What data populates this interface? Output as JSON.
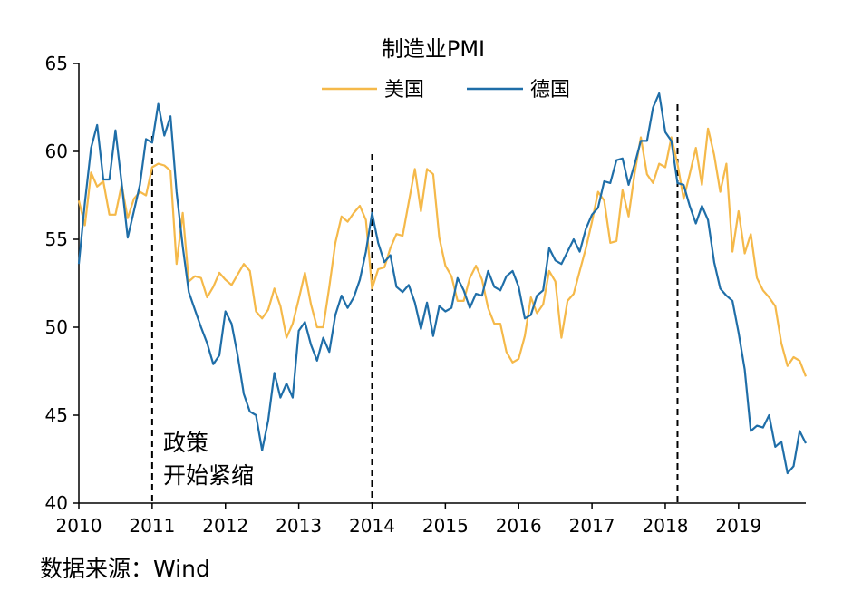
{
  "chart_data": {
    "type": "line",
    "title": "制造业PMI",
    "xlabel": "",
    "ylabel": "",
    "xlim": [
      2010,
      2019.917
    ],
    "ylim": [
      40,
      65
    ],
    "y_ticks": [
      "40",
      "45",
      "50",
      "55",
      "60",
      "65"
    ],
    "x_ticks": [
      "2010",
      "2011",
      "2012",
      "2013",
      "2014",
      "2015",
      "2016",
      "2017",
      "2018",
      "2019"
    ],
    "x_step": "monthly",
    "x_start": 2010,
    "grid": false,
    "legend_position": "top",
    "colors": {
      "美国": "#f5b94a",
      "德国": "#1f6ea8",
      "axis": "#000000"
    },
    "series": [
      {
        "name": "美国",
        "color": "#f5b94a",
        "values": [
          57.2,
          55.8,
          58.8,
          58.0,
          58.3,
          56.4,
          56.4,
          58.1,
          56.2,
          57.3,
          57.7,
          57.5,
          59.1,
          59.3,
          59.2,
          58.9,
          53.6,
          56.5,
          52.6,
          52.9,
          52.8,
          51.7,
          52.3,
          53.1,
          52.7,
          52.4,
          53.0,
          53.6,
          53.2,
          50.9,
          50.5,
          51.0,
          52.2,
          51.2,
          49.4,
          50.2,
          51.6,
          53.1,
          51.3,
          50.0,
          50.0,
          52.3,
          54.8,
          56.3,
          56.0,
          56.5,
          56.9,
          56.1,
          52.2,
          53.3,
          53.4,
          54.5,
          55.3,
          55.2,
          57.1,
          59.0,
          56.6,
          59.0,
          58.7,
          55.1,
          53.5,
          52.9,
          51.5,
          51.5,
          52.8,
          53.5,
          52.7,
          51.1,
          50.2,
          50.2,
          48.6,
          48.0,
          48.2,
          49.5,
          51.7,
          50.8,
          51.3,
          53.2,
          52.6,
          49.4,
          51.5,
          51.9,
          53.2,
          54.5,
          56.0,
          57.7,
          57.2,
          54.8,
          54.9,
          57.8,
          56.3,
          58.8,
          60.8,
          58.7,
          58.2,
          59.3,
          59.1,
          60.8,
          59.3,
          57.3,
          58.7,
          60.2,
          58.1,
          61.3,
          59.8,
          57.7,
          59.3,
          54.3,
          56.6,
          54.2,
          55.3,
          52.8,
          52.1,
          51.7,
          51.2,
          49.1,
          47.8,
          48.3,
          48.1,
          47.2
        ]
      },
      {
        "name": "德国",
        "color": "#1f6ea8",
        "values": [
          53.6,
          57.1,
          60.2,
          61.5,
          58.4,
          58.4,
          61.2,
          58.2,
          55.1,
          56.6,
          58.1,
          60.7,
          60.5,
          62.7,
          60.9,
          62.0,
          57.7,
          54.6,
          52.0,
          51.0,
          50.0,
          49.1,
          47.9,
          48.4,
          50.9,
          50.2,
          48.4,
          46.2,
          45.2,
          45.0,
          43.0,
          44.7,
          47.4,
          46.0,
          46.8,
          46.0,
          49.8,
          50.3,
          49.0,
          48.1,
          49.4,
          48.6,
          50.7,
          51.8,
          51.1,
          51.7,
          52.7,
          54.3,
          56.5,
          54.8,
          53.7,
          54.1,
          52.3,
          52.0,
          52.4,
          51.4,
          49.9,
          51.4,
          49.5,
          51.2,
          50.9,
          51.1,
          52.8,
          52.1,
          51.1,
          51.9,
          51.8,
          53.2,
          52.3,
          52.1,
          52.9,
          53.2,
          52.3,
          50.5,
          50.7,
          51.8,
          52.1,
          54.5,
          53.8,
          53.6,
          54.3,
          55.0,
          54.3,
          55.6,
          56.4,
          56.8,
          58.3,
          58.2,
          59.5,
          59.6,
          58.1,
          59.3,
          60.6,
          60.6,
          62.5,
          63.3,
          61.1,
          60.6,
          58.2,
          58.1,
          56.9,
          55.9,
          56.9,
          56.1,
          53.7,
          52.2,
          51.8,
          51.5,
          49.7,
          47.6,
          44.1,
          44.4,
          44.3,
          45.0,
          43.2,
          43.5,
          41.7,
          42.1,
          44.1,
          43.4
        ]
      }
    ],
    "vertical_markers": [
      2011,
      2014,
      2018.167
    ],
    "annotations": [
      {
        "text_line1": "政策",
        "text_line2": "开始紧缩",
        "x": 2011.15,
        "y": 43.5
      }
    ]
  },
  "source": "数据来源：Wind"
}
